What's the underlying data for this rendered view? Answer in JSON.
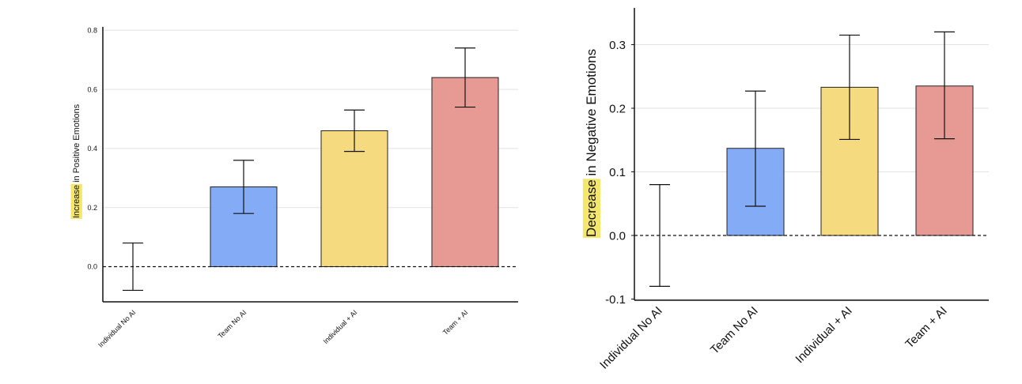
{
  "chart_data": [
    {
      "type": "bar",
      "title": "",
      "categories": [
        "Individual No AI",
        "Team No AI",
        "Individual + AI",
        "Team + AI"
      ],
      "values": [
        0.0,
        0.27,
        0.46,
        0.64
      ],
      "error_low": [
        -0.08,
        0.18,
        0.39,
        0.54
      ],
      "error_high": [
        0.08,
        0.36,
        0.53,
        0.74
      ],
      "bar_colors": [
        "none",
        "#84abf5",
        "#f6da7f",
        "#e69a93"
      ],
      "ylabel_highlight": "Increase",
      "ylabel_rest": " in Positive Emotions",
      "ylim": [
        -0.12,
        0.81
      ],
      "yticks": [
        0.0,
        0.2,
        0.4,
        0.6,
        0.8
      ],
      "ytick_labels": [
        "0.0",
        "0.2",
        "0.4",
        "0.6",
        "0.8"
      ],
      "grid": true,
      "zero_line": "dashed"
    },
    {
      "type": "bar",
      "title": "",
      "categories": [
        "Individual No AI",
        "Team No AI",
        "Individual + AI",
        "Team + AI"
      ],
      "values": [
        0.0,
        0.137,
        0.233,
        0.235
      ],
      "error_low": [
        -0.08,
        0.046,
        0.151,
        0.152
      ],
      "error_high": [
        0.08,
        0.227,
        0.315,
        0.32
      ],
      "bar_colors": [
        "none",
        "#84abf5",
        "#f6da7f",
        "#e69a93"
      ],
      "ylabel_highlight": "Decrease",
      "ylabel_rest": " in Negative Emotions",
      "ylim": [
        -0.1,
        0.36
      ],
      "yticks": [
        -0.1,
        0.0,
        0.1,
        0.2,
        0.3
      ],
      "ytick_labels": [
        "-0.1",
        "0.0",
        "0.1",
        "0.2",
        "0.3"
      ],
      "grid": true,
      "zero_line": "dashed"
    }
  ],
  "colors": {
    "highlight": "#f4e56b",
    "grid": "#e2e2e2",
    "axis": "#111111",
    "edge": "#222222"
  }
}
